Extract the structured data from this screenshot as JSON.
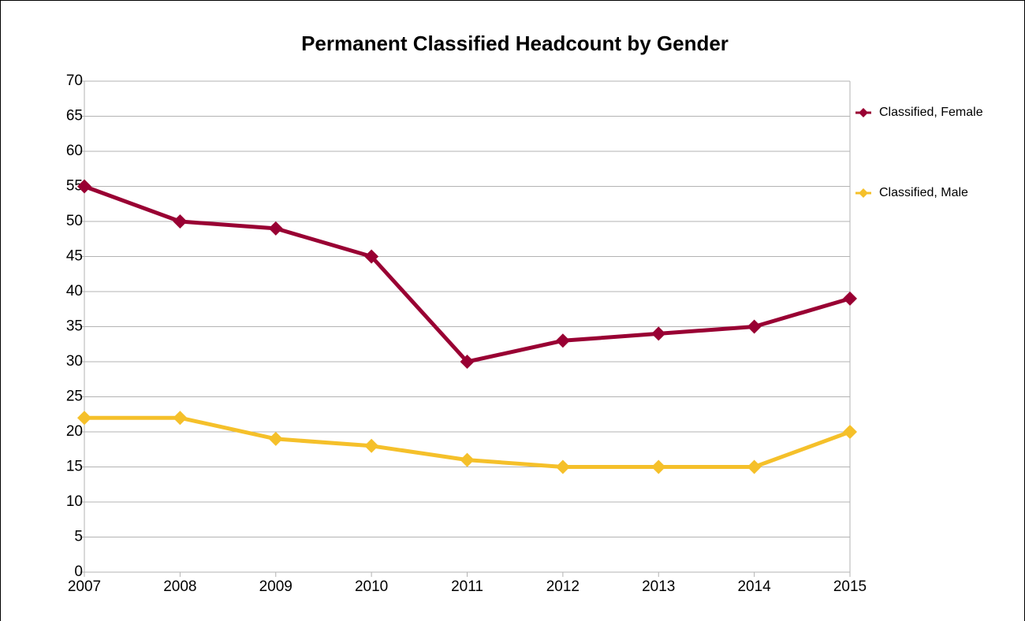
{
  "chart_data": {
    "type": "line",
    "title": "Permanent Classified Headcount by Gender",
    "x": [
      2007,
      2008,
      2009,
      2010,
      2011,
      2012,
      2013,
      2014,
      2015
    ],
    "xlim": [
      2007,
      2015
    ],
    "xticks": [
      2007,
      2008,
      2009,
      2010,
      2011,
      2012,
      2013,
      2014,
      2015
    ],
    "ylim": [
      0,
      70
    ],
    "yticks": [
      0,
      5,
      10,
      15,
      20,
      25,
      30,
      35,
      40,
      45,
      50,
      55,
      60,
      65,
      70
    ],
    "grid": true,
    "legend": "right",
    "series": [
      {
        "name": "Classified, Female",
        "color": "#990033",
        "values": [
          55,
          50,
          49,
          45,
          30,
          33,
          34,
          35,
          39
        ]
      },
      {
        "name": "Classified, Male",
        "color": "#f5c02a",
        "values": [
          22,
          22,
          19,
          18,
          16,
          15,
          15,
          15,
          20
        ]
      }
    ]
  }
}
